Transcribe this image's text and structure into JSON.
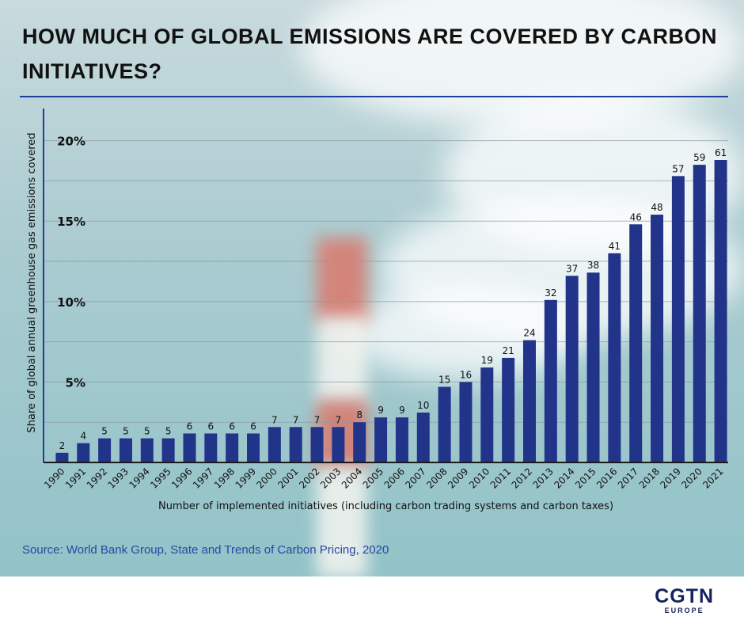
{
  "header": {
    "title": "HOW MUCH OF GLOBAL EMISSIONS ARE COVERED BY CARBON  INITIATIVES?"
  },
  "footer": {
    "source": "Source: World Bank Group, State and Trends of Carbon Pricing, 2020",
    "logo_main": "CGTN",
    "logo_sub": "EUROPE"
  },
  "colors": {
    "bar": "#22338a",
    "axis": "#1f3f9a",
    "grid": "#8a9aa0"
  },
  "chart_data": {
    "type": "bar",
    "title": "HOW MUCH OF GLOBAL EMISSIONS ARE COVERED BY CARBON  INITIATIVES?",
    "xlabel": "Number of implemented initiatives (including carbon trading systems and carbon taxes)",
    "ylabel": "Share of global annual greenhouse gas emissions covered",
    "ylim": [
      0,
      22
    ],
    "yticks": [
      5,
      10,
      15,
      20
    ],
    "ytick_labels": [
      "5%",
      "10%",
      "15%",
      "20%"
    ],
    "grid": true,
    "categories": [
      "1990",
      "1991",
      "1992",
      "1993",
      "1994",
      "1995",
      "1996",
      "1997",
      "1998",
      "1999",
      "2000",
      "2001",
      "2002",
      "2003",
      "2004",
      "2005",
      "2006",
      "2007",
      "2008",
      "2009",
      "2010",
      "2011",
      "2012",
      "2013",
      "2014",
      "2015",
      "2016",
      "2017",
      "2018",
      "2019",
      "2020",
      "2021"
    ],
    "values": [
      0.6,
      1.2,
      1.5,
      1.5,
      1.5,
      1.5,
      1.8,
      1.8,
      1.8,
      1.8,
      2.2,
      2.2,
      2.2,
      2.2,
      2.5,
      2.8,
      2.8,
      3.1,
      4.7,
      5.0,
      5.9,
      6.5,
      7.6,
      10.1,
      11.6,
      11.8,
      13.0,
      14.8,
      15.4,
      17.8,
      18.5,
      18.8
    ],
    "data_labels": [
      "2",
      "4",
      "5",
      "5",
      "5",
      "5",
      "6",
      "6",
      "6",
      "6",
      "7",
      "7",
      "7",
      "7",
      "8",
      "9",
      "9",
      "10",
      "15",
      "16",
      "19",
      "21",
      "24",
      "32",
      "37",
      "38",
      "41",
      "46",
      "48",
      "57",
      "59",
      "61"
    ]
  }
}
